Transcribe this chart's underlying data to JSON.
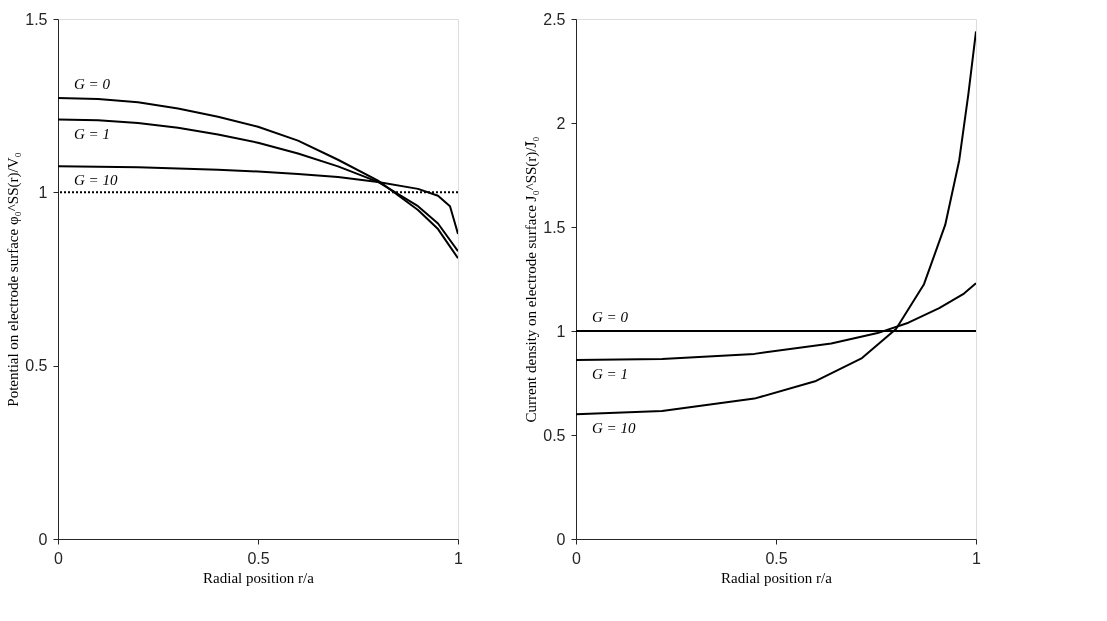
{
  "chart_data": [
    {
      "type": "line",
      "xlabel": "Radial position r/a",
      "ylabel": "Potential on electrode surface φ₀^SS(r)/V₀",
      "xlim": [
        0,
        1
      ],
      "ylim": [
        0,
        1.5
      ],
      "xticks": [
        0,
        0.5,
        1
      ],
      "yticks": [
        0,
        0.5,
        1,
        1.5
      ],
      "grid": false,
      "line_style": "solid",
      "marker": "none",
      "series": [
        {
          "color": "#000000",
          "x": [
            0,
            0.1,
            0.2,
            0.3,
            0.4,
            0.5,
            0.6,
            0.7,
            0.8,
            0.9,
            0.95,
            1
          ],
          "values": [
            1.272,
            1.269,
            1.26,
            1.242,
            1.218,
            1.189,
            1.149,
            1.094,
            1.034,
            0.949,
            0.894,
            0.81
          ]
        },
        {
          "color": "#000000",
          "x": [
            0,
            0.1,
            0.2,
            0.3,
            0.4,
            0.5,
            0.6,
            0.7,
            0.8,
            0.9,
            0.95,
            1
          ],
          "values": [
            1.21,
            1.208,
            1.2,
            1.186,
            1.167,
            1.143,
            1.112,
            1.075,
            1.03,
            0.96,
            0.91,
            0.83
          ]
        },
        {
          "color": "#000000",
          "x": [
            0,
            0.1,
            0.2,
            0.3,
            0.4,
            0.5,
            0.6,
            0.7,
            0.8,
            0.9,
            0.95,
            0.98,
            0.99,
            1
          ],
          "values": [
            1.075,
            1.074,
            1.072,
            1.069,
            1.065,
            1.06,
            1.053,
            1.044,
            1.03,
            1.01,
            0.99,
            0.96,
            0.92,
            0.88
          ]
        }
      ],
      "ref_lines": [
        {
          "axis": "y",
          "value": 1,
          "line_style": "dotted",
          "color": "#000000"
        }
      ],
      "annotations": [
        "G = 0",
        "G = 1",
        "G = 10"
      ]
    },
    {
      "type": "line",
      "xlabel": "Radial position r/a",
      "ylabel": "Current density on electrode surface J₀^SS(r)/J̄₀",
      "xlim": [
        0,
        1
      ],
      "ylim": [
        0,
        2.5
      ],
      "xticks": [
        0,
        0.5,
        1
      ],
      "yticks": [
        0,
        0.5,
        1,
        1.5,
        2,
        2.5
      ],
      "grid": false,
      "line_style": "solid",
      "marker": "none",
      "series": [
        {
          "color": "#000000",
          "x": [
            0,
            1
          ],
          "values": [
            1,
            1
          ]
        },
        {
          "color": "#000000",
          "x": [
            0,
            0.215,
            0.446,
            0.638,
            0.754,
            0.831,
            0.908,
            0.97,
            1
          ],
          "values": [
            0.86,
            0.865,
            0.89,
            0.94,
            0.99,
            1.04,
            1.11,
            1.18,
            1.23
          ]
        },
        {
          "color": "#000000",
          "x": [
            0,
            0.215,
            0.446,
            0.6,
            0.715,
            0.8,
            0.87,
            0.923,
            0.958,
            0.981,
            1
          ],
          "values": [
            0.6,
            0.615,
            0.675,
            0.76,
            0.87,
            1.01,
            1.225,
            1.51,
            1.82,
            2.14,
            2.44
          ]
        }
      ],
      "annotations": [
        "G = 0",
        "G = 1",
        "G = 10"
      ]
    }
  ]
}
